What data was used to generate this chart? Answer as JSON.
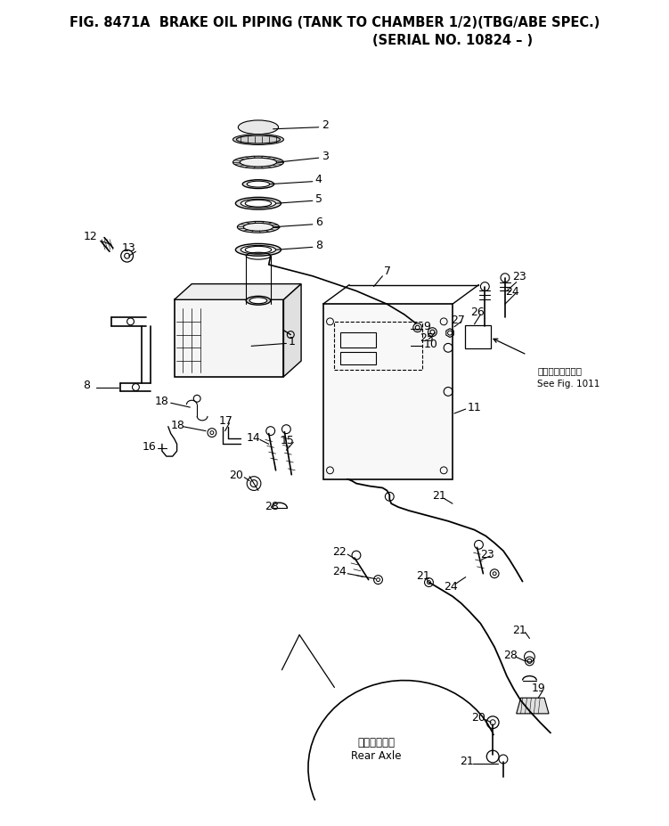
{
  "title_line1": "FIG. 8471A  BRAKE OIL PIPING (TANK TO CHAMBER 1/2)(TBG/ABE SPEC.)",
  "title_line2": "(SERIAL NO. 10824 – )",
  "bg_color": "#ffffff",
  "lc": "#000000",
  "tc": "#000000",
  "see_fig_jp": "第１０１１図参照",
  "see_fig_en": "See Fig. 1011",
  "rear_axle_jp": "リヤアクスル",
  "rear_axle_en": "Rear Axle"
}
